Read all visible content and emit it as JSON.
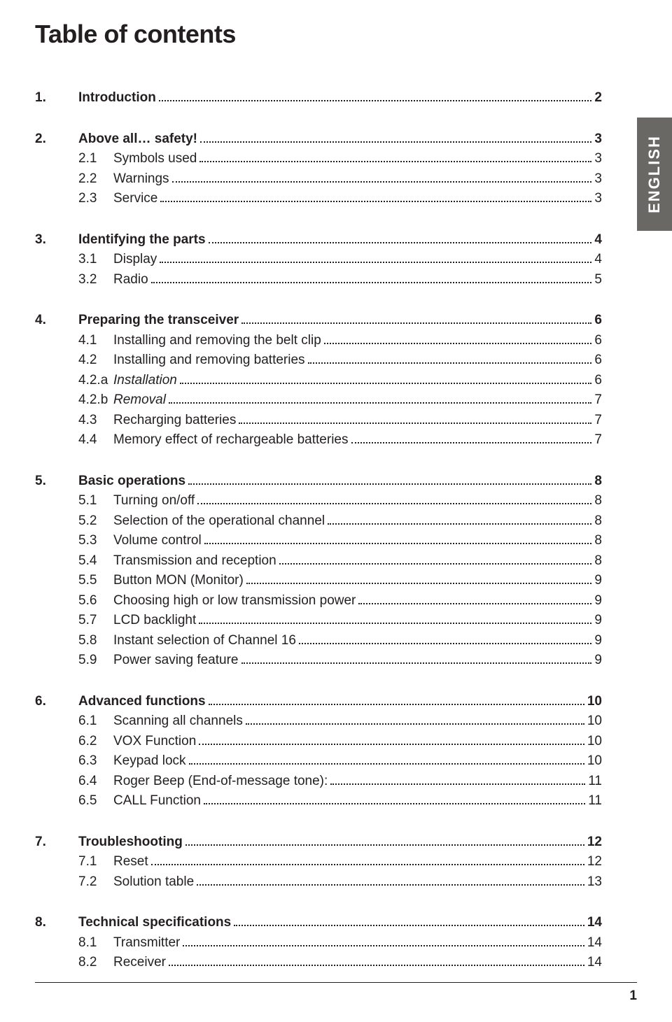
{
  "title": "Table of contents",
  "language_tab": "ENGLISH",
  "page_number": "1",
  "sections": [
    {
      "num": "1.",
      "title": "Introduction",
      "page": "2",
      "items": []
    },
    {
      "num": "2.",
      "title": "Above all… safety!",
      "page": "3",
      "items": [
        {
          "num": "2.1",
          "title": "Symbols used",
          "page": "3"
        },
        {
          "num": "2.2",
          "title": "Warnings",
          "page": "3"
        },
        {
          "num": "2.3",
          "title": "Service",
          "page": "3"
        }
      ]
    },
    {
      "num": "3.",
      "title": "Identifying the parts",
      "page": "4",
      "items": [
        {
          "num": "3.1",
          "title": "Display",
          "page": "4"
        },
        {
          "num": "3.2",
          "title": "Radio",
          "page": "5"
        }
      ]
    },
    {
      "num": "4.",
      "title": "Preparing the transceiver",
      "page": "6",
      "items": [
        {
          "num": "4.1",
          "title": "Installing and removing the belt clip",
          "page": "6"
        },
        {
          "num": "4.2",
          "title": "Installing and removing batteries",
          "page": "6"
        },
        {
          "num": "4.2.a",
          "title": "Installation",
          "page": "6",
          "italic": true
        },
        {
          "num": "4.2.b",
          "title": "Removal",
          "page": "7",
          "italic": true
        },
        {
          "num": "4.3",
          "title": "Recharging batteries",
          "page": "7"
        },
        {
          "num": "4.4",
          "title": "Memory effect of rechargeable batteries",
          "page": "7"
        }
      ]
    },
    {
      "num": "5.",
      "title": "Basic operations",
      "page": "8",
      "items": [
        {
          "num": "5.1",
          "title": "Turning on/off",
          "page": "8"
        },
        {
          "num": "5.2",
          "title": "Selection of the operational channel",
          "page": "8"
        },
        {
          "num": "5.3",
          "title": "Volume control",
          "page": "8"
        },
        {
          "num": "5.4",
          "title": "Transmission and reception",
          "page": "8"
        },
        {
          "num": "5.5",
          "title": "Button MON (Monitor)",
          "page": "9"
        },
        {
          "num": "5.6",
          "title": "Choosing high or low transmission power",
          "page": "9"
        },
        {
          "num": "5.7",
          "title": "LCD backlight",
          "page": "9"
        },
        {
          "num": "5.8",
          "title": "Instant selection of Channel 16",
          "page": "9"
        },
        {
          "num": "5.9",
          "title": "Power saving feature",
          "page": "9"
        }
      ]
    },
    {
      "num": "6.",
      "title": "Advanced functions",
      "page": "10",
      "items": [
        {
          "num": "6.1",
          "title": "Scanning all channels",
          "page": "10"
        },
        {
          "num": "6.2",
          "title": "VOX Function",
          "page": "10"
        },
        {
          "num": "6.3",
          "title": "Keypad lock",
          "page": "10"
        },
        {
          "num": "6.4",
          "title": "Roger Beep (End-of-message tone):",
          "page": "11"
        },
        {
          "num": "6.5",
          "title": "CALL Function",
          "page": "11"
        }
      ]
    },
    {
      "num": "7.",
      "title": "Troubleshooting",
      "page": "12",
      "items": [
        {
          "num": "7.1",
          "title": "Reset",
          "page": "12"
        },
        {
          "num": "7.2",
          "title": "Solution table",
          "page": "13"
        }
      ]
    },
    {
      "num": "8.",
      "title": "Technical specifications",
      "page": "14",
      "items": [
        {
          "num": "8.1",
          "title": "Transmitter",
          "page": "14"
        },
        {
          "num": "8.2",
          "title": "Receiver",
          "page": "14"
        }
      ]
    }
  ]
}
